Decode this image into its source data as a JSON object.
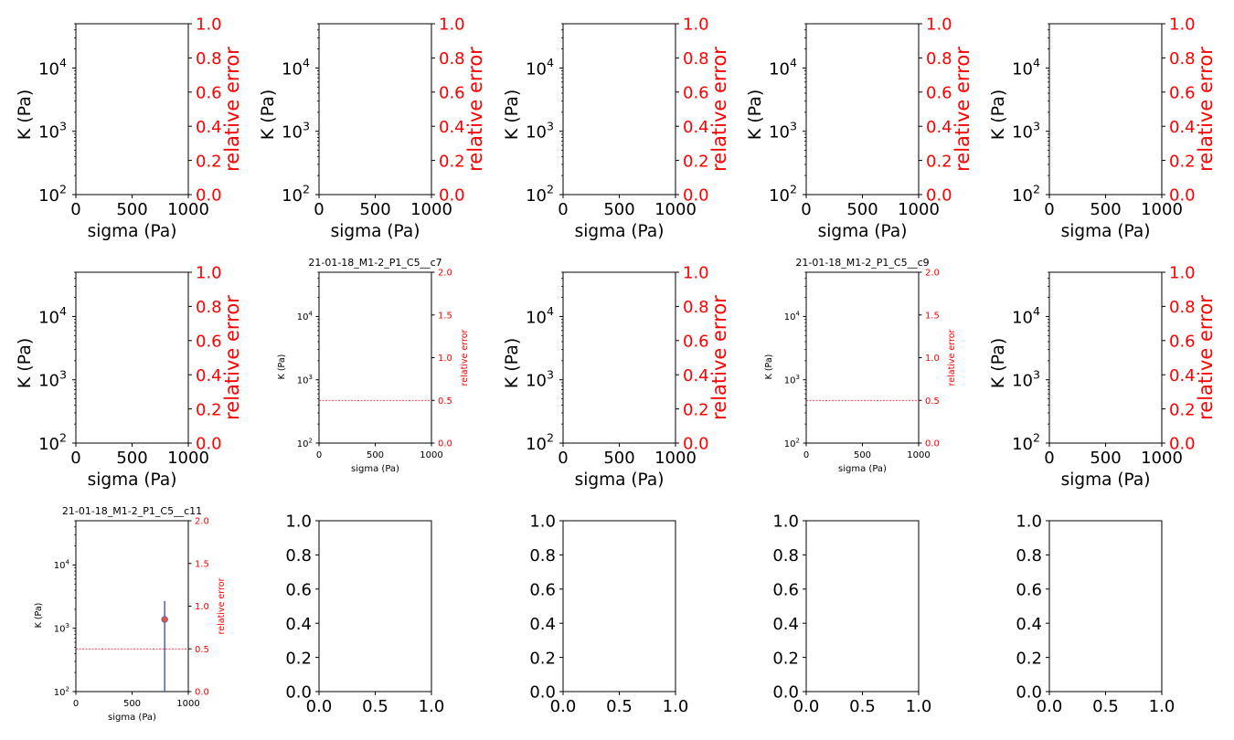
{
  "colors": {
    "frame": "#000000",
    "right_axis": "#ff0000",
    "point_fill": "#e8543f",
    "point_edge": "#4a5fc1",
    "errorbar": "#4a5fc1",
    "threshold_line": "#ff0000"
  },
  "chart_data": [
    {
      "row": 0,
      "col": 0,
      "type": "scatter",
      "variant": "empty_twin",
      "title": "",
      "xlabel": "sigma (Pa)",
      "ylabel": "K (Pa)",
      "y2label": "relative error",
      "xlim": [
        0,
        1000
      ],
      "xticks": [
        "0",
        "500",
        "1000"
      ],
      "ylim": [
        100,
        50000
      ],
      "yscale": "log",
      "yticks": [
        {
          "v": 100,
          "base": "10",
          "exp": "2"
        },
        {
          "v": 1000,
          "base": "10",
          "exp": "3"
        },
        {
          "v": 10000,
          "base": "10",
          "exp": "4"
        }
      ],
      "y2lim": [
        0,
        1
      ],
      "y2ticks": [
        "0.0",
        "0.2",
        "0.4",
        "0.6",
        "0.8",
        "1.0"
      ],
      "points": []
    },
    {
      "row": 0,
      "col": 1,
      "type": "scatter",
      "variant": "empty_twin",
      "title": "",
      "xlabel": "sigma (Pa)",
      "ylabel": "K (Pa)",
      "y2label": "relative error",
      "xlim": [
        0,
        1000
      ],
      "xticks": [
        "0",
        "500",
        "1000"
      ],
      "ylim": [
        100,
        50000
      ],
      "yscale": "log",
      "yticks": [
        {
          "v": 100,
          "base": "10",
          "exp": "2"
        },
        {
          "v": 1000,
          "base": "10",
          "exp": "3"
        },
        {
          "v": 10000,
          "base": "10",
          "exp": "4"
        }
      ],
      "y2lim": [
        0,
        1
      ],
      "y2ticks": [
        "0.0",
        "0.2",
        "0.4",
        "0.6",
        "0.8",
        "1.0"
      ],
      "points": []
    },
    {
      "row": 0,
      "col": 2,
      "type": "scatter",
      "variant": "empty_twin",
      "title": "",
      "xlabel": "sigma (Pa)",
      "ylabel": "K (Pa)",
      "y2label": "relative error",
      "xlim": [
        0,
        1000
      ],
      "xticks": [
        "0",
        "500",
        "1000"
      ],
      "ylim": [
        100,
        50000
      ],
      "yscale": "log",
      "yticks": [
        {
          "v": 100,
          "base": "10",
          "exp": "2"
        },
        {
          "v": 1000,
          "base": "10",
          "exp": "3"
        },
        {
          "v": 10000,
          "base": "10",
          "exp": "4"
        }
      ],
      "y2lim": [
        0,
        1
      ],
      "y2ticks": [
        "0.0",
        "0.2",
        "0.4",
        "0.6",
        "0.8",
        "1.0"
      ],
      "points": []
    },
    {
      "row": 0,
      "col": 3,
      "type": "scatter",
      "variant": "empty_twin",
      "title": "",
      "xlabel": "sigma (Pa)",
      "ylabel": "K (Pa)",
      "y2label": "relative error",
      "xlim": [
        0,
        1000
      ],
      "xticks": [
        "0",
        "500",
        "1000"
      ],
      "ylim": [
        100,
        50000
      ],
      "yscale": "log",
      "yticks": [
        {
          "v": 100,
          "base": "10",
          "exp": "2"
        },
        {
          "v": 1000,
          "base": "10",
          "exp": "3"
        },
        {
          "v": 10000,
          "base": "10",
          "exp": "4"
        }
      ],
      "y2lim": [
        0,
        1
      ],
      "y2ticks": [
        "0.0",
        "0.2",
        "0.4",
        "0.6",
        "0.8",
        "1.0"
      ],
      "points": []
    },
    {
      "row": 0,
      "col": 4,
      "type": "scatter",
      "variant": "empty_twin",
      "title": "",
      "xlabel": "sigma (Pa)",
      "ylabel": "K (Pa)",
      "y2label": "relative error",
      "xlim": [
        0,
        1000
      ],
      "xticks": [
        "0",
        "500",
        "1000"
      ],
      "ylim": [
        100,
        50000
      ],
      "yscale": "log",
      "yticks": [
        {
          "v": 100,
          "base": "10",
          "exp": "2"
        },
        {
          "v": 1000,
          "base": "10",
          "exp": "3"
        },
        {
          "v": 10000,
          "base": "10",
          "exp": "4"
        }
      ],
      "y2lim": [
        0,
        1
      ],
      "y2ticks": [
        "0.0",
        "0.2",
        "0.4",
        "0.6",
        "0.8",
        "1.0"
      ],
      "points": []
    },
    {
      "row": 1,
      "col": 0,
      "type": "scatter",
      "variant": "empty_twin",
      "title": "",
      "xlabel": "sigma (Pa)",
      "ylabel": "K (Pa)",
      "y2label": "relative error",
      "xlim": [
        0,
        1000
      ],
      "xticks": [
        "0",
        "500",
        "1000"
      ],
      "ylim": [
        100,
        50000
      ],
      "yscale": "log",
      "yticks": [
        {
          "v": 100,
          "base": "10",
          "exp": "2"
        },
        {
          "v": 1000,
          "base": "10",
          "exp": "3"
        },
        {
          "v": 10000,
          "base": "10",
          "exp": "4"
        }
      ],
      "y2lim": [
        0,
        1
      ],
      "y2ticks": [
        "0.0",
        "0.2",
        "0.4",
        "0.6",
        "0.8",
        "1.0"
      ],
      "points": []
    },
    {
      "row": 1,
      "col": 1,
      "type": "scatter",
      "variant": "cell",
      "title": "21-01-18_M1-2_P1_C5__c7",
      "xlabel": "sigma (Pa)",
      "ylabel": "K (Pa)",
      "y2label": "relative error",
      "xlim": [
        0,
        1000
      ],
      "xticks": [
        "0",
        "500",
        "1000"
      ],
      "ylim": [
        100,
        50000
      ],
      "yscale": "log",
      "yticks": [
        {
          "v": 100,
          "base": "10",
          "exp": "2"
        },
        {
          "v": 1000,
          "base": "10",
          "exp": "3"
        },
        {
          "v": 10000,
          "base": "10",
          "exp": "4"
        }
      ],
      "y2lim": [
        0,
        2
      ],
      "y2ticks": [
        "0.0",
        "0.5",
        "1.0",
        "1.5",
        "2.0"
      ],
      "threshold": 0.5,
      "points": []
    },
    {
      "row": 1,
      "col": 2,
      "type": "scatter",
      "variant": "empty_twin",
      "title": "",
      "xlabel": "sigma (Pa)",
      "ylabel": "K (Pa)",
      "y2label": "relative error",
      "xlim": [
        0,
        1000
      ],
      "xticks": [
        "0",
        "500",
        "1000"
      ],
      "ylim": [
        100,
        50000
      ],
      "yscale": "log",
      "yticks": [
        {
          "v": 100,
          "base": "10",
          "exp": "2"
        },
        {
          "v": 1000,
          "base": "10",
          "exp": "3"
        },
        {
          "v": 10000,
          "base": "10",
          "exp": "4"
        }
      ],
      "y2lim": [
        0,
        1
      ],
      "y2ticks": [
        "0.0",
        "0.2",
        "0.4",
        "0.6",
        "0.8",
        "1.0"
      ],
      "points": []
    },
    {
      "row": 1,
      "col": 3,
      "type": "scatter",
      "variant": "cell",
      "title": "21-01-18_M1-2_P1_C5__c9",
      "xlabel": "sigma (Pa)",
      "ylabel": "K (Pa)",
      "y2label": "relative error",
      "xlim": [
        0,
        1000
      ],
      "xticks": [
        "0",
        "500",
        "1000"
      ],
      "ylim": [
        100,
        50000
      ],
      "yscale": "log",
      "yticks": [
        {
          "v": 100,
          "base": "10",
          "exp": "2"
        },
        {
          "v": 1000,
          "base": "10",
          "exp": "3"
        },
        {
          "v": 10000,
          "base": "10",
          "exp": "4"
        }
      ],
      "y2lim": [
        0,
        2
      ],
      "y2ticks": [
        "0.0",
        "0.5",
        "1.0",
        "1.5",
        "2.0"
      ],
      "threshold": 0.5,
      "points": []
    },
    {
      "row": 1,
      "col": 4,
      "type": "scatter",
      "variant": "empty_twin",
      "title": "",
      "xlabel": "sigma (Pa)",
      "ylabel": "K (Pa)",
      "y2label": "relative error",
      "xlim": [
        0,
        1000
      ],
      "xticks": [
        "0",
        "500",
        "1000"
      ],
      "ylim": [
        100,
        50000
      ],
      "yscale": "log",
      "yticks": [
        {
          "v": 100,
          "base": "10",
          "exp": "2"
        },
        {
          "v": 1000,
          "base": "10",
          "exp": "3"
        },
        {
          "v": 10000,
          "base": "10",
          "exp": "4"
        }
      ],
      "y2lim": [
        0,
        1
      ],
      "y2ticks": [
        "0.0",
        "0.2",
        "0.4",
        "0.6",
        "0.8",
        "1.0"
      ],
      "points": []
    },
    {
      "row": 2,
      "col": 0,
      "type": "scatter",
      "variant": "cell",
      "title": "21-01-18_M1-2_P1_C5__c11",
      "xlabel": "sigma (Pa)",
      "ylabel": "K (Pa)",
      "y2label": "relative error",
      "xlim": [
        0,
        1000
      ],
      "xticks": [
        "0",
        "500",
        "1000"
      ],
      "ylim": [
        100,
        50000
      ],
      "yscale": "log",
      "yticks": [
        {
          "v": 100,
          "base": "10",
          "exp": "2"
        },
        {
          "v": 1000,
          "base": "10",
          "exp": "3"
        },
        {
          "v": 10000,
          "base": "10",
          "exp": "4"
        }
      ],
      "y2lim": [
        0,
        2
      ],
      "y2ticks": [
        "0.0",
        "0.5",
        "1.0",
        "1.5",
        "2.0"
      ],
      "threshold": 0.5,
      "points": [
        {
          "x": 790,
          "y": 1380,
          "ylo": 100,
          "yhi": 2700
        }
      ]
    },
    {
      "row": 2,
      "col": 1,
      "type": "scatter",
      "variant": "blank",
      "title": "",
      "xlabel": "",
      "ylabel": "",
      "xlim": [
        0,
        1
      ],
      "xticks": [
        "0.0",
        "0.5",
        "1.0"
      ],
      "ylim": [
        0,
        1
      ],
      "yticks": [
        "0.0",
        "0.2",
        "0.4",
        "0.6",
        "0.8",
        "1.0"
      ],
      "points": []
    },
    {
      "row": 2,
      "col": 2,
      "type": "scatter",
      "variant": "blank",
      "title": "",
      "xlabel": "",
      "ylabel": "",
      "xlim": [
        0,
        1
      ],
      "xticks": [
        "0.0",
        "0.5",
        "1.0"
      ],
      "ylim": [
        0,
        1
      ],
      "yticks": [
        "0.0",
        "0.2",
        "0.4",
        "0.6",
        "0.8",
        "1.0"
      ],
      "points": []
    },
    {
      "row": 2,
      "col": 3,
      "type": "scatter",
      "variant": "blank",
      "title": "",
      "xlabel": "",
      "ylabel": "",
      "xlim": [
        0,
        1
      ],
      "xticks": [
        "0.0",
        "0.5",
        "1.0"
      ],
      "ylim": [
        0,
        1
      ],
      "yticks": [
        "0.0",
        "0.2",
        "0.4",
        "0.6",
        "0.8",
        "1.0"
      ],
      "points": []
    },
    {
      "row": 2,
      "col": 4,
      "type": "scatter",
      "variant": "blank",
      "title": "",
      "xlabel": "",
      "ylabel": "",
      "xlim": [
        0,
        1
      ],
      "xticks": [
        "0.0",
        "0.5",
        "1.0"
      ],
      "ylim": [
        0,
        1
      ],
      "yticks": [
        "0.0",
        "0.2",
        "0.4",
        "0.6",
        "0.8",
        "1.0"
      ],
      "points": []
    }
  ]
}
